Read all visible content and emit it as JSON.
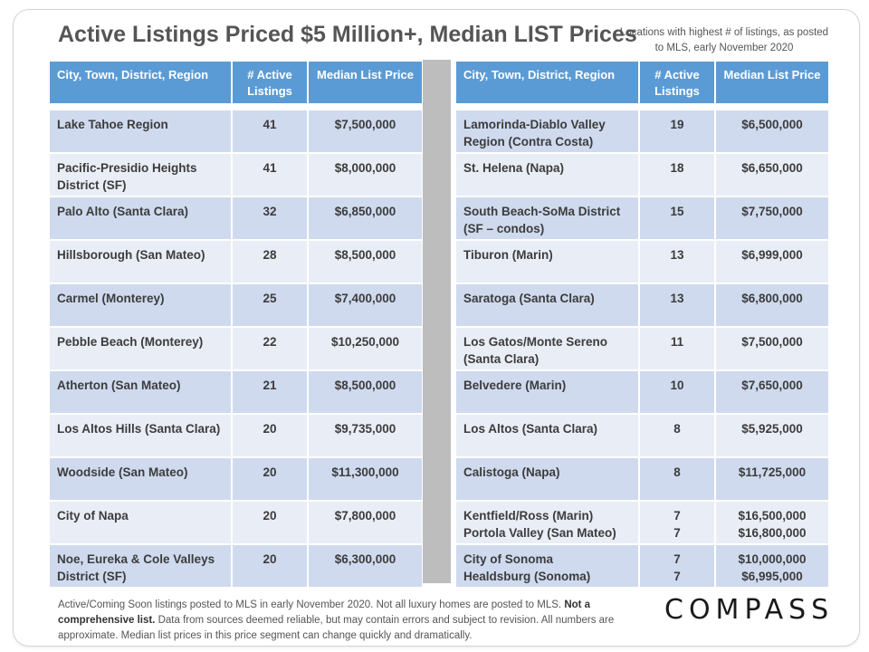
{
  "title": "Active Listings Priced $5 Million+, Median LIST Prices",
  "note": "Locations with highest # of listings, as posted to MLS, early November 2020",
  "headers": {
    "location": "City, Town, District, Region",
    "listings": "# Active Listings",
    "price": "Median List Price"
  },
  "left_rows": [
    {
      "loc": "Lake Tahoe Region",
      "n": "41",
      "price": "$7,500,000"
    },
    {
      "loc": "Pacific-Presidio Heights District (SF)",
      "n": "41",
      "price": "$8,000,000"
    },
    {
      "loc": "Palo Alto (Santa Clara)",
      "n": "32",
      "price": "$6,850,000"
    },
    {
      "loc": "Hillsborough (San Mateo)",
      "n": "28",
      "price": "$8,500,000"
    },
    {
      "loc": "Carmel (Monterey)",
      "n": "25",
      "price": "$7,400,000"
    },
    {
      "loc": "Pebble Beach (Monterey)",
      "n": "22",
      "price": "$10,250,000"
    },
    {
      "loc": "Atherton (San Mateo)",
      "n": "21",
      "price": "$8,500,000"
    },
    {
      "loc": "Los Altos Hills (Santa Clara)",
      "n": "20",
      "price": "$9,735,000"
    },
    {
      "loc": "Woodside (San Mateo)",
      "n": "20",
      "price": "$11,300,000"
    },
    {
      "loc": "City of Napa",
      "n": "20",
      "price": "$7,800,000"
    },
    {
      "loc": "Noe, Eureka & Cole Valleys District (SF)",
      "n": "20",
      "price": "$6,300,000"
    }
  ],
  "right_rows": [
    {
      "loc": "Lamorinda-Diablo Valley Region (Contra Costa)",
      "n": "19",
      "price": "$6,500,000"
    },
    {
      "loc": "St. Helena (Napa)",
      "n": "18",
      "price": "$6,650,000"
    },
    {
      "loc": "South Beach-SoMa District (SF – condos)",
      "n": "15",
      "price": "$7,750,000"
    },
    {
      "loc": "Tiburon (Marin)",
      "n": "13",
      "price": "$6,999,000"
    },
    {
      "loc": "Saratoga (Santa Clara)",
      "n": "13",
      "price": "$6,800,000"
    },
    {
      "loc": "Los Gatos/Monte Sereno (Santa Clara)",
      "n": "11",
      "price": "$7,500,000"
    },
    {
      "loc": "Belvedere (Marin)",
      "n": "10",
      "price": "$7,650,000"
    },
    {
      "loc": "Los Altos (Santa Clara)",
      "n": "8",
      "price": "$5,925,000"
    },
    {
      "loc": "Calistoga (Napa)",
      "n": "8",
      "price": "$11,725,000"
    },
    {
      "loc": "Kentfield/Ross (Marin)",
      "n": "7",
      "price": "$16,500,000"
    },
    {
      "loc": "Portola Valley (San Mateo)",
      "n": "7",
      "price": "$16,800,000"
    },
    {
      "loc": "City of Sonoma",
      "n": "7",
      "price": "$10,000,000"
    },
    {
      "loc": "Healdsburg (Sonoma)",
      "n": "7",
      "price": "$6,995,000"
    }
  ],
  "footer": {
    "text1": "Active/Coming Soon listings posted to MLS in early November 2020. Not all luxury homes are posted to MLS.",
    "bold": "Not a comprehensive list.",
    "text2": "Data from sources deemed reliable, but may contain errors and subject to revision. All numbers are approximate. Median list prices in this price segment can change quickly and dramatically."
  },
  "logo": "COMPASS"
}
